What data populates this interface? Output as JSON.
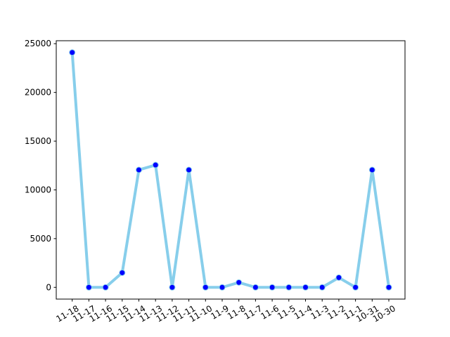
{
  "chart_data": {
    "type": "line",
    "title": "",
    "xlabel": "",
    "ylabel": "",
    "categories": [
      "11-18",
      "11-17",
      "11-16",
      "11-15",
      "11-14",
      "11-13",
      "11-12",
      "11-11",
      "11-10",
      "11-9",
      "11-8",
      "11-7",
      "11-6",
      "11-5",
      "11-4",
      "11-3",
      "11-2",
      "11-1",
      "10-31",
      "10-30"
    ],
    "series": [
      {
        "values": [
          24100,
          0,
          0,
          1500,
          12050,
          12550,
          0,
          12050,
          0,
          0,
          500,
          0,
          0,
          0,
          0,
          0,
          1000,
          0,
          12050,
          0
        ]
      }
    ],
    "ylim": [
      -1205,
      25305
    ],
    "yticks": [
      0,
      5000,
      10000,
      15000,
      20000,
      25000
    ],
    "grid": false,
    "legend": "none",
    "x_tick_rotation": 30,
    "colors": {
      "line": "#87ceeb",
      "marker_fill": "#0000ff",
      "marker_edge": "#87ceeb"
    }
  }
}
